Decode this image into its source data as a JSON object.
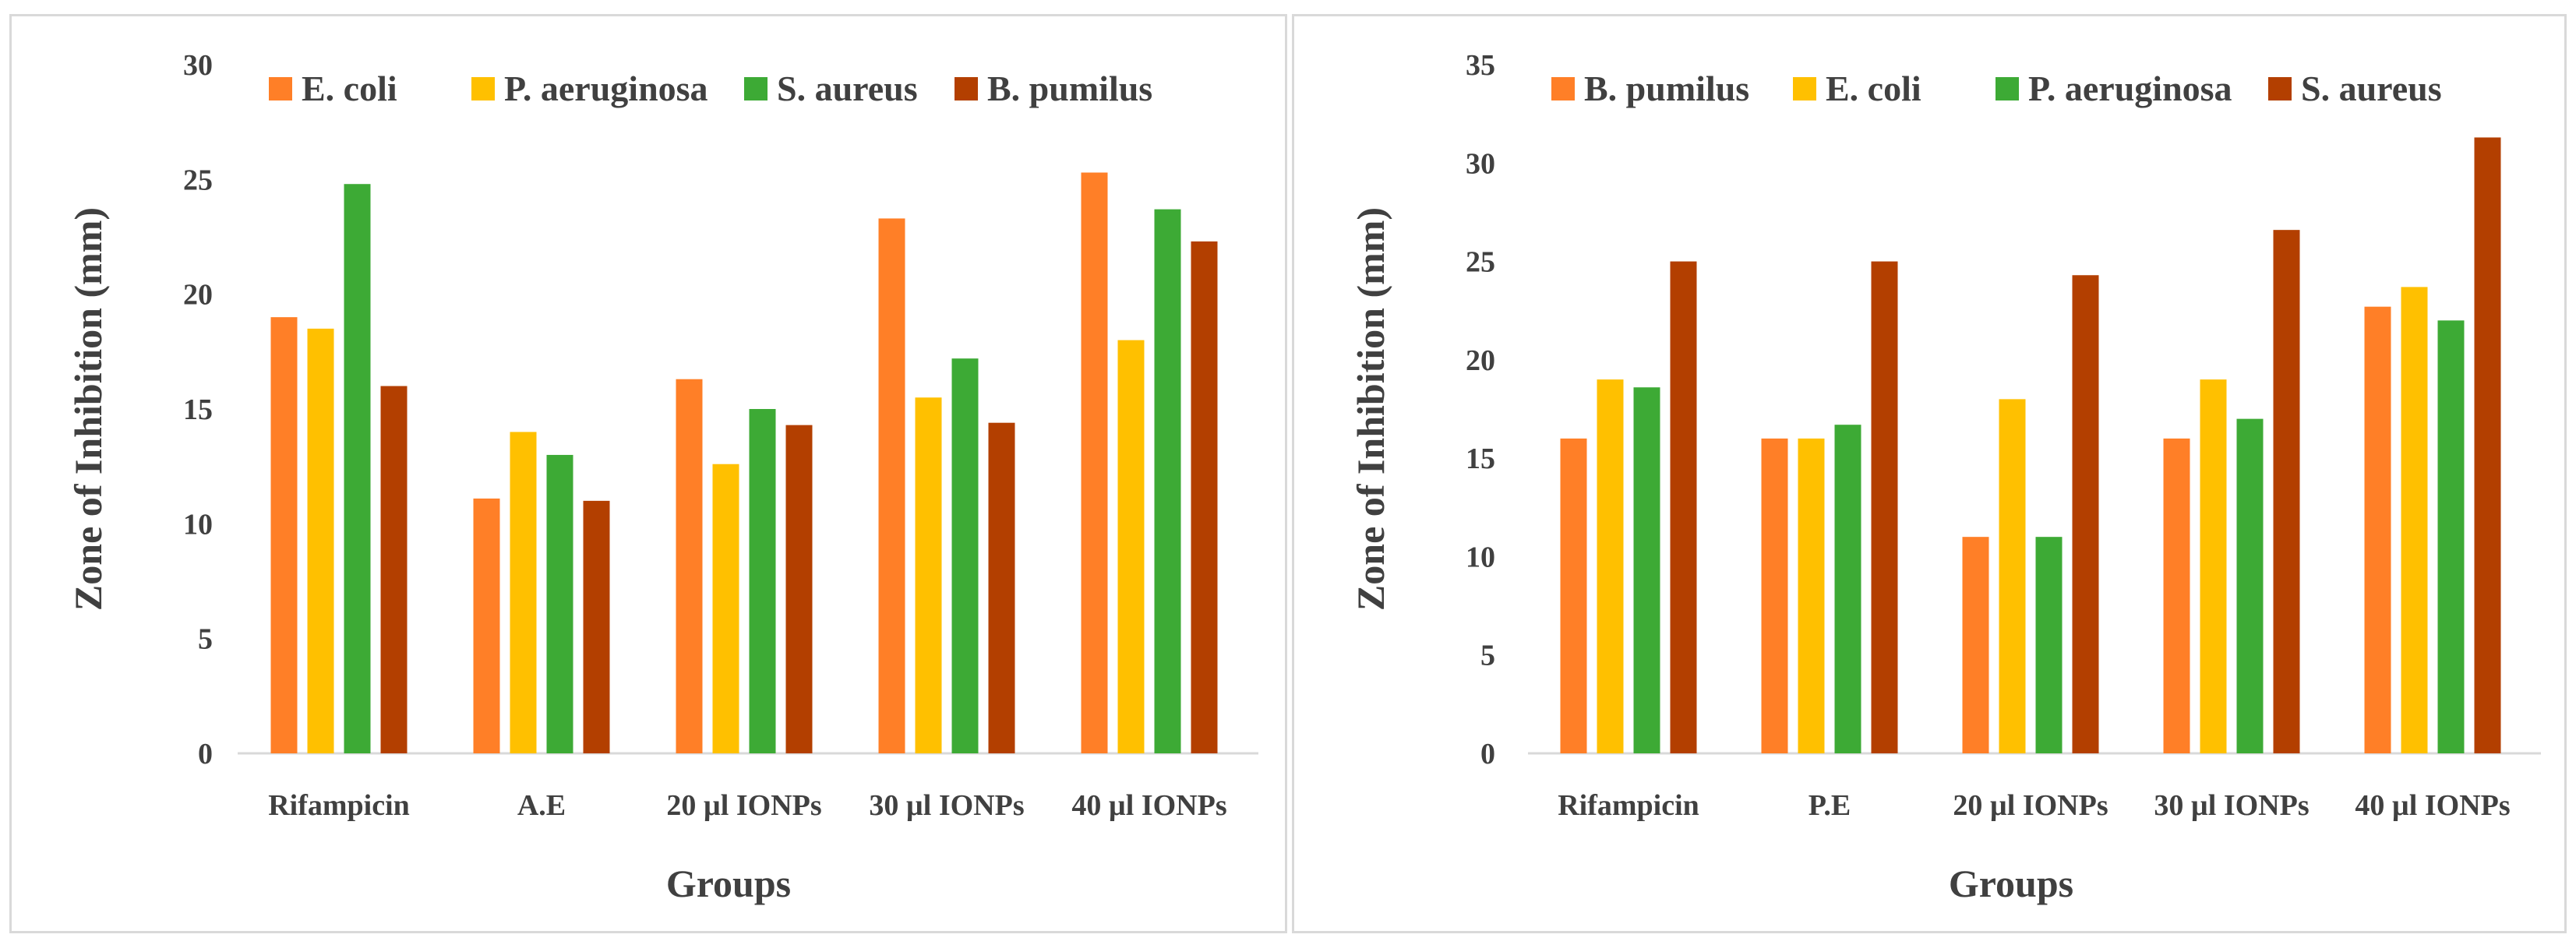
{
  "colors": {
    "orange": "#FF7F27",
    "yellow": "#FFC000",
    "green": "#3DAA35",
    "brown": "#B33F00"
  },
  "chart_data": [
    {
      "type": "bar",
      "title": "",
      "xlabel": "Groups",
      "ylabel": "Zone of Inhibition (mm)",
      "ylim": [
        0,
        30
      ],
      "yticks": [
        "0",
        "5",
        "10",
        "15",
        "20",
        "25",
        "30"
      ],
      "categories": [
        "Rifampicin",
        "A.E",
        "20 µl IONPs",
        "30 µl IONPs",
        "40 µl IONPs"
      ],
      "legend_position": "top",
      "series": [
        {
          "name": "E. coli",
          "color": "#FF7F27",
          "values": [
            19,
            11.1,
            16.3,
            23.3,
            25.3
          ]
        },
        {
          "name": "P. aeruginosa",
          "color": "#FFC000",
          "values": [
            18.5,
            14,
            12.6,
            15.5,
            18
          ]
        },
        {
          "name": "S. aureus",
          "color": "#3DAA35",
          "values": [
            24.8,
            13,
            15,
            17.2,
            23.7
          ]
        },
        {
          "name": "B. pumilus",
          "color": "#B33F00",
          "values": [
            16,
            11,
            14.3,
            14.4,
            22.3
          ]
        }
      ]
    },
    {
      "type": "bar",
      "title": "",
      "xlabel": "Groups",
      "ylabel": "Zone of Inhibition (mm)",
      "ylim": [
        0,
        35
      ],
      "yticks": [
        "0",
        "5",
        "10",
        "15",
        "20",
        "25",
        "30",
        "35"
      ],
      "categories": [
        "Rifampicin",
        "P.E",
        "20 µl IONPs",
        "30 µl IONPs",
        "40 µl IONPs"
      ],
      "legend_position": "top",
      "series": [
        {
          "name": "B. pumilus",
          "color": "#FF7F27",
          "values": [
            16,
            16,
            11,
            16,
            22.7
          ]
        },
        {
          "name": "E. coli",
          "color": "#FFC000",
          "values": [
            19,
            16,
            18,
            19,
            23.7
          ]
        },
        {
          "name": "P. aeruginosa",
          "color": "#3DAA35",
          "values": [
            18.6,
            16.7,
            11,
            17,
            22
          ]
        },
        {
          "name": "S. aureus",
          "color": "#B33F00",
          "values": [
            25,
            25,
            24.3,
            26.6,
            31.3
          ]
        }
      ]
    }
  ]
}
